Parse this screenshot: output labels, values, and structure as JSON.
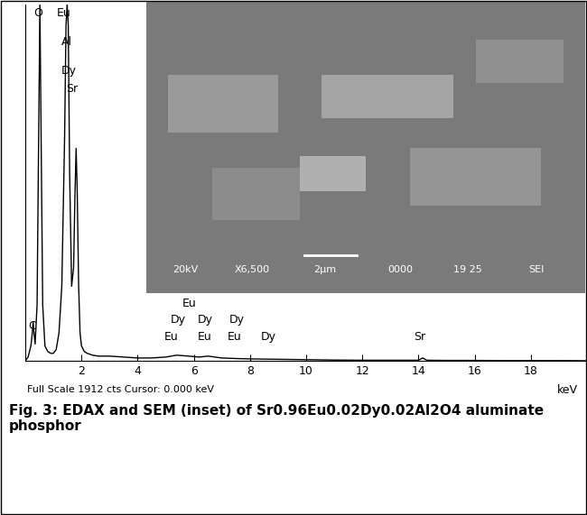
{
  "chart_data": {
    "type": "line",
    "x": [
      0.0,
      0.1,
      0.2,
      0.25,
      0.28,
      0.31,
      0.35,
      0.42,
      0.47,
      0.52,
      0.57,
      0.62,
      0.7,
      0.8,
      0.9,
      1.0,
      1.1,
      1.2,
      1.3,
      1.4,
      1.45,
      1.49,
      1.53,
      1.58,
      1.65,
      1.72,
      1.77,
      1.81,
      1.85,
      1.9,
      1.95,
      2.0,
      2.1,
      2.2,
      2.4,
      2.6,
      3.0,
      3.5,
      4.0,
      4.5,
      5.0,
      5.4,
      5.8,
      6.2,
      6.5,
      7.0,
      7.5,
      8.0,
      9.0,
      10.0,
      11.0,
      12.0,
      13.0,
      14.0,
      14.15,
      14.3,
      15.0,
      16.0,
      17.0,
      18.0,
      19.0,
      20.0
    ],
    "values": [
      0,
      20,
      80,
      150,
      210,
      150,
      90,
      300,
      1100,
      1912,
      1100,
      300,
      80,
      50,
      40,
      40,
      60,
      150,
      400,
      1200,
      1800,
      1912,
      1800,
      1000,
      400,
      500,
      900,
      1140,
      900,
      400,
      150,
      80,
      50,
      40,
      30,
      25,
      25,
      20,
      15,
      15,
      20,
      30,
      25,
      20,
      25,
      15,
      12,
      10,
      8,
      6,
      4,
      3,
      3,
      3,
      15,
      3,
      2,
      2,
      1,
      1,
      1,
      0
    ],
    "color": "#000000",
    "xlim": [
      0,
      20
    ],
    "ylim": [
      0,
      1912
    ],
    "xticks": [
      2,
      4,
      6,
      8,
      10,
      12,
      14,
      16,
      18
    ],
    "tick_labels": "x",
    "x_unit_label": "keV",
    "status_text": "Full Scale 1912 cts Cursor: 0.000 keV",
    "peak_labels": [
      {
        "text": "O",
        "x": 0.29,
        "y": 1897
      },
      {
        "text": "Eu",
        "x": 1.12,
        "y": 1897
      },
      {
        "text": "Al",
        "x": 1.28,
        "y": 1743
      },
      {
        "text": "Dy",
        "x": 1.28,
        "y": 1588
      },
      {
        "text": "Sr",
        "x": 1.44,
        "y": 1491
      },
      {
        "text": "C",
        "x": 0.1,
        "y": 218
      },
      {
        "text": "Eu",
        "x": 5.6,
        "y": 339
      },
      {
        "text": "Dy",
        "x": 5.18,
        "y": 252
      },
      {
        "text": "Dy",
        "x": 6.14,
        "y": 252
      },
      {
        "text": "Dy",
        "x": 7.26,
        "y": 252
      },
      {
        "text": "Eu",
        "x": 4.93,
        "y": 160
      },
      {
        "text": "Eu",
        "x": 6.14,
        "y": 160
      },
      {
        "text": "Eu",
        "x": 7.2,
        "y": 160
      },
      {
        "text": "Dy",
        "x": 8.38,
        "y": 160
      },
      {
        "text": "Sr",
        "x": 13.82,
        "y": 160
      }
    ]
  },
  "inset": {
    "texts": [
      "20kV",
      "X6,500",
      "2μm",
      "0000",
      "19 25",
      "SEI"
    ]
  },
  "caption": "Fig. 3: EDAX and SEM (inset) of Sr0.96Eu0.02Dy0.02Al2O4 aluminate phosphor"
}
